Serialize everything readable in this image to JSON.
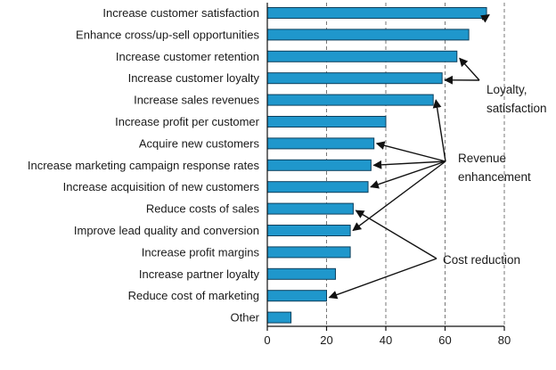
{
  "chart_data": {
    "type": "bar",
    "orientation": "horizontal",
    "categories": [
      "Increase customer satisfaction",
      "Enhance cross/up-sell opportunities",
      "Increase customer retention",
      "Increase customer loyalty",
      "Increase sales revenues",
      "Increase profit per customer",
      "Acquire new customers",
      "Increase marketing campaign response rates",
      "Increase acquisition of new customers",
      "Reduce costs of sales",
      "Improve lead quality and conversion",
      "Increase profit margins",
      "Increase partner loyalty",
      "Reduce cost of marketing",
      "Other"
    ],
    "values": [
      74,
      68,
      64,
      59,
      56,
      40,
      36,
      35,
      34,
      29,
      28,
      28,
      23,
      20,
      8
    ],
    "xlim": [
      0,
      80
    ],
    "xticks": [
      0,
      20,
      40,
      60,
      80
    ],
    "grid": "vertical dashed",
    "bar_color": "#1f97cc",
    "annotations": [
      {
        "label": [
          "Loyalty,",
          "satisfaction"
        ],
        "targets": [
          0,
          2,
          3
        ]
      },
      {
        "label": [
          "Revenue",
          "enhancement"
        ],
        "targets": [
          4,
          6,
          7,
          8,
          10
        ]
      },
      {
        "label": [
          "Cost reduction"
        ],
        "targets": [
          9,
          13
        ]
      }
    ]
  }
}
